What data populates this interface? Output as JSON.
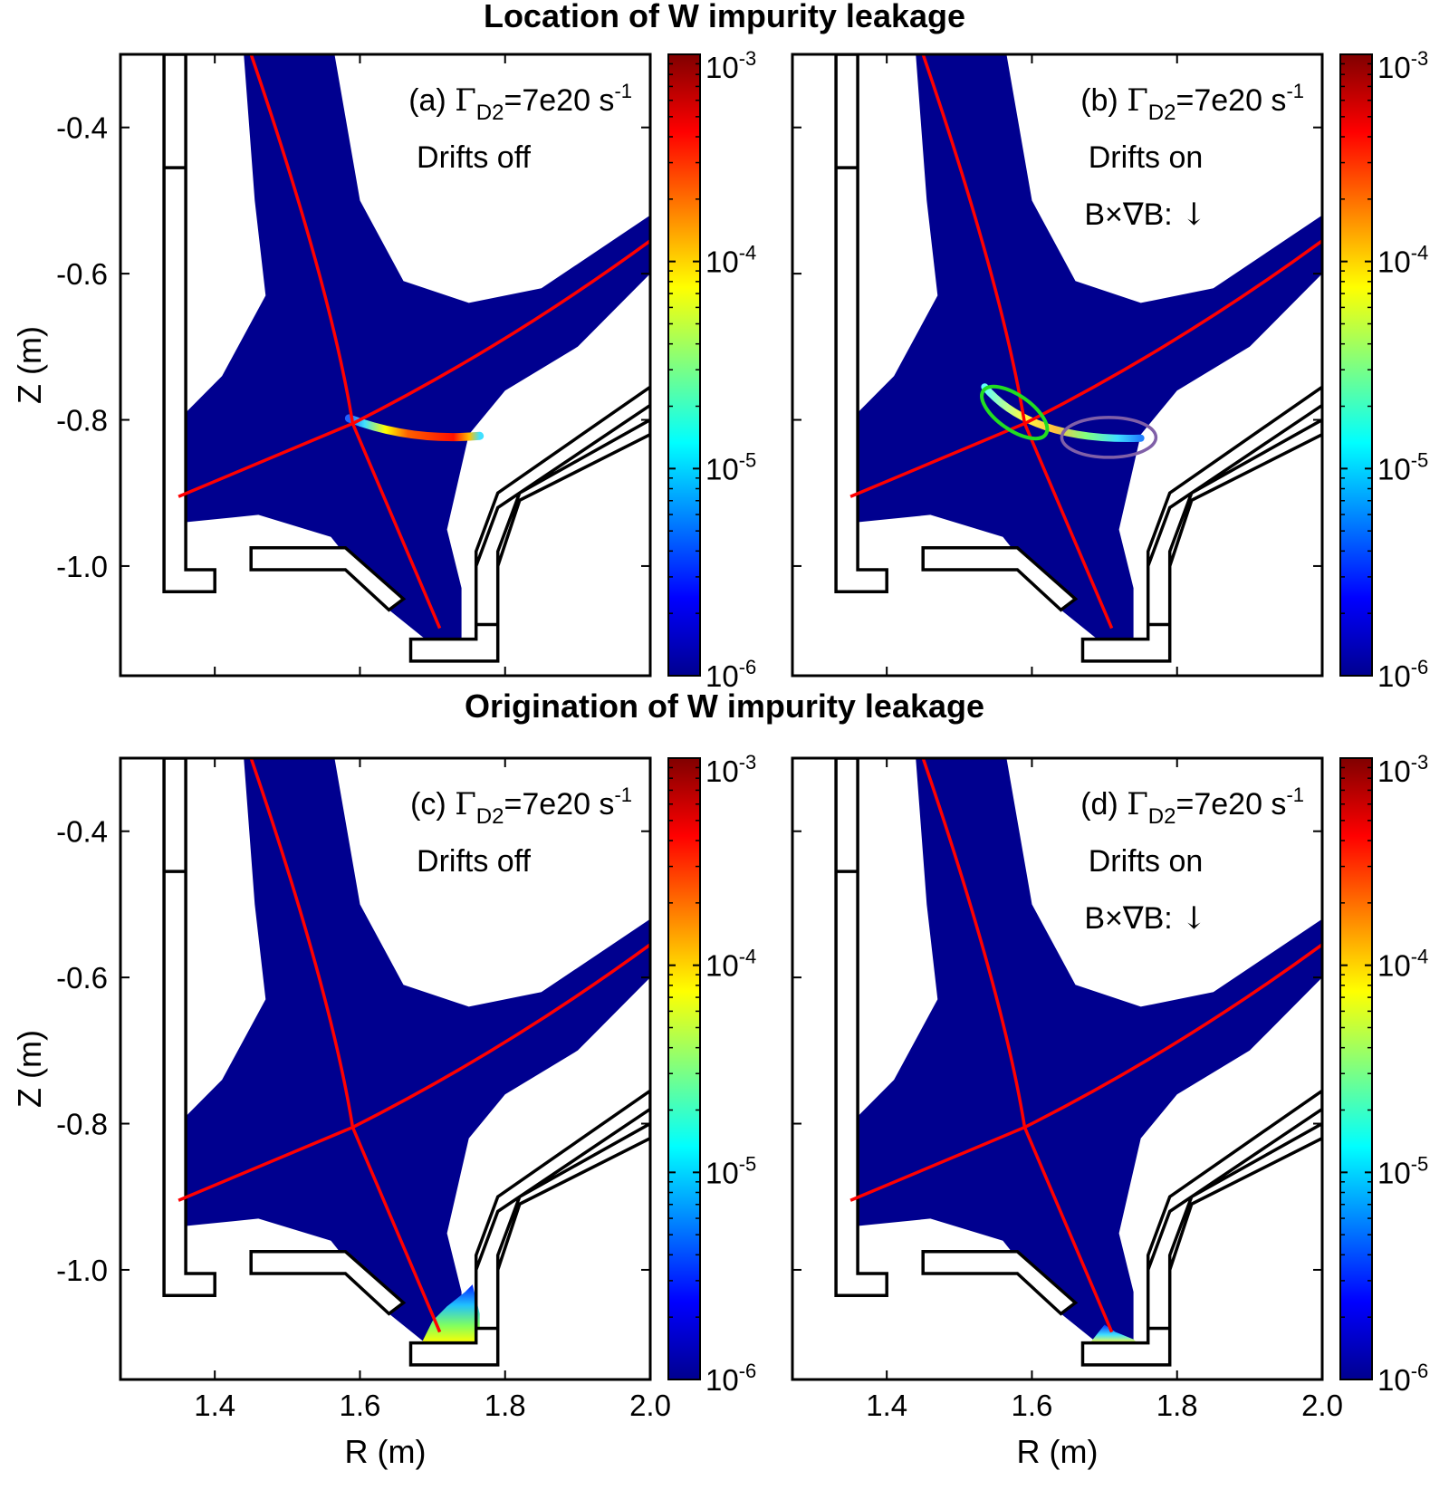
{
  "figure": {
    "top_title": "Location of W impurity leakage",
    "bottom_title": "Origination of W impurity leakage",
    "x_label": "R (m)",
    "y_label": "Z (m)",
    "colors": {
      "background_plasma": "#00008f",
      "separatrix": "#ff0000",
      "wall": "#000000",
      "green_ellipse": "#22dd22",
      "purple_ellipse": "#8060a8"
    }
  },
  "panels": [
    {
      "id": "a",
      "label": "(a)",
      "gamma_symbol": "Γ",
      "gamma_sub": "D2",
      "gamma_value": "=7e20 s",
      "gamma_exp": "-1",
      "line2": "Drifts off",
      "line3": "",
      "arrow": ""
    },
    {
      "id": "b",
      "label": "(b)",
      "gamma_symbol": "Γ",
      "gamma_sub": "D2",
      "gamma_value": "=7e20 s",
      "gamma_exp": "-1",
      "line2": "Drifts on",
      "line3": "B×∇B:",
      "arrow": "↓"
    },
    {
      "id": "c",
      "label": "(c)",
      "gamma_symbol": "Γ",
      "gamma_sub": "D2",
      "gamma_value": "=7e20 s",
      "gamma_exp": "-1",
      "line2": "Drifts off",
      "line3": "",
      "arrow": ""
    },
    {
      "id": "d",
      "label": "(d)",
      "gamma_symbol": "Γ",
      "gamma_sub": "D2",
      "gamma_value": "=7e20 s",
      "gamma_exp": "-1",
      "line2": "Drifts on",
      "line3": "B×∇B:",
      "arrow": "↓"
    }
  ],
  "colorbar": {
    "ticks": [
      {
        "base": "10",
        "exp": "-3"
      },
      {
        "base": "10",
        "exp": "-4"
      },
      {
        "base": "10",
        "exp": "-5"
      },
      {
        "base": "10",
        "exp": "-6"
      }
    ]
  },
  "chart_data": {
    "type": "heatmap",
    "title": "Location / Origination of W impurity leakage",
    "xlabel": "R (m)",
    "ylabel": "Z (m)",
    "xlim": [
      1.27,
      2.0
    ],
    "ylim": [
      -1.15,
      -0.3
    ],
    "x_ticks": [
      1.4,
      1.6,
      1.8,
      2.0
    ],
    "x_tick_labels": [
      "1.4",
      "1.6",
      "1.8",
      "2.0"
    ],
    "y_ticks": [
      -0.4,
      -0.6,
      -0.8,
      -1.0
    ],
    "y_tick_labels": [
      "-0.4",
      "-0.6",
      "-0.8",
      "-1.0"
    ],
    "color_scale": "log",
    "color_range": [
      1e-06,
      0.001
    ],
    "x_point": {
      "R": 1.59,
      "Z": -0.805
    },
    "separatrix_leg1": [
      [
        1.45,
        -0.3
      ],
      [
        1.53,
        -0.55
      ],
      [
        1.59,
        -0.805
      ],
      [
        1.65,
        -0.95
      ],
      [
        1.71,
        -1.085
      ]
    ],
    "separatrix_leg2": [
      [
        1.35,
        -0.905
      ],
      [
        1.59,
        -0.805
      ],
      [
        1.8,
        -0.69
      ],
      [
        2.0,
        -0.555
      ]
    ],
    "wall_inner": [
      [
        1.33,
        -0.3
      ],
      [
        1.33,
        -1.035
      ],
      [
        1.4,
        -1.035
      ],
      [
        1.4,
        -1.005
      ],
      [
        1.36,
        -1.005
      ],
      [
        1.36,
        -0.3
      ]
    ],
    "wall_dome": [
      [
        1.45,
        -0.975
      ],
      [
        1.58,
        -0.975
      ],
      [
        1.66,
        -1.045
      ],
      [
        1.64,
        -1.06
      ],
      [
        1.58,
        -1.005
      ],
      [
        1.45,
        -1.005
      ]
    ],
    "wall_outer": [
      [
        1.67,
        -1.1
      ],
      [
        1.76,
        -1.1
      ],
      [
        1.76,
        -1.0
      ],
      [
        1.79,
        -0.92
      ],
      [
        2.0,
        -0.78
      ],
      [
        2.0,
        -0.755
      ],
      [
        1.79,
        -0.9
      ],
      [
        1.76,
        -0.98
      ],
      [
        1.76,
        -1.08
      ],
      [
        1.79,
        -1.08
      ],
      [
        1.79,
        -0.98
      ],
      [
        1.82,
        -0.9
      ],
      [
        2.0,
        -0.8
      ],
      [
        2.0,
        -0.82
      ],
      [
        1.82,
        -0.91
      ],
      [
        1.79,
        -1.0
      ],
      [
        1.79,
        -1.13
      ],
      [
        1.67,
        -1.13
      ]
    ],
    "series": [
      {
        "panel": "a",
        "name": "leakage location (drifts off)",
        "peak": 0.0005,
        "region": "band along outer leg R 1.57-1.76, Z -0.80 to -0.825"
      },
      {
        "panel": "b",
        "name": "leakage location (drifts on)",
        "peak": 0.0001,
        "region": "band near X-point R 1.53-1.75, Z -0.76 to -0.825"
      },
      {
        "panel": "c",
        "name": "leakage origination (drifts off)",
        "peak": 8e-05,
        "region": "outer divertor target R 1.68-1.78, Z -1.02 to -1.10"
      },
      {
        "panel": "d",
        "name": "leakage origination (drifts on)",
        "peak": 5e-05,
        "region": "outer divertor target R 1.68-1.75, Z -1.07 to -1.10"
      }
    ]
  }
}
